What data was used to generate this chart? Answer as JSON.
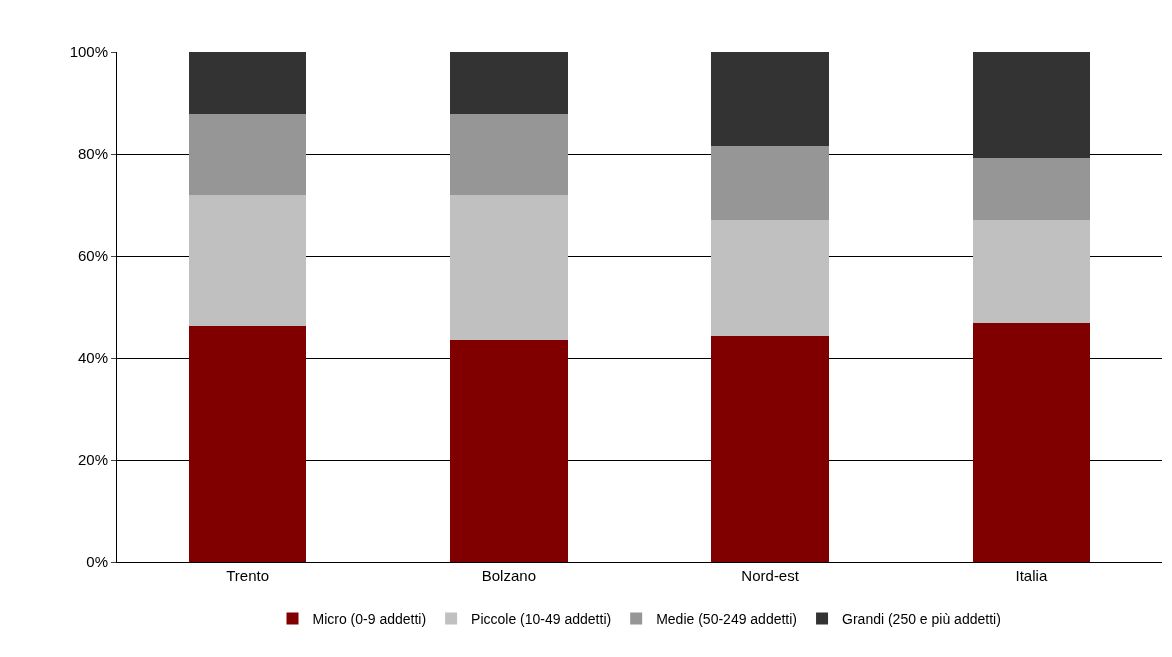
{
  "chart_data": {
    "type": "bar",
    "stacked": true,
    "categories": [
      "Trento",
      "Bolzano",
      "Nord-est",
      "Italia"
    ],
    "series": [
      {
        "name": "Micro (0-9 addetti)",
        "color": "#800000",
        "values": [
          46.3,
          43.5,
          44.3,
          46.9
        ]
      },
      {
        "name": "Piccole (10-49 addetti)",
        "color": "#c0c0c0",
        "values": [
          25.7,
          28.5,
          22.8,
          20.2
        ]
      },
      {
        "name": "Medie (50-249 addetti)",
        "color": "#969696",
        "values": [
          15.8,
          15.8,
          14.5,
          12.1
        ]
      },
      {
        "name": "Grandi (250 e più addetti)",
        "color": "#333333",
        "values": [
          12.2,
          12.2,
          18.4,
          20.8
        ]
      }
    ],
    "ylim": [
      0,
      100
    ],
    "yticks": [
      {
        "value": 0,
        "label": "0%"
      },
      {
        "value": 20,
        "label": "20%"
      },
      {
        "value": 40,
        "label": "40%"
      },
      {
        "value": 60,
        "label": "60%"
      },
      {
        "value": 80,
        "label": "80%"
      },
      {
        "value": 100,
        "label": "100%"
      }
    ],
    "grid": "y",
    "legend": "bottom"
  }
}
